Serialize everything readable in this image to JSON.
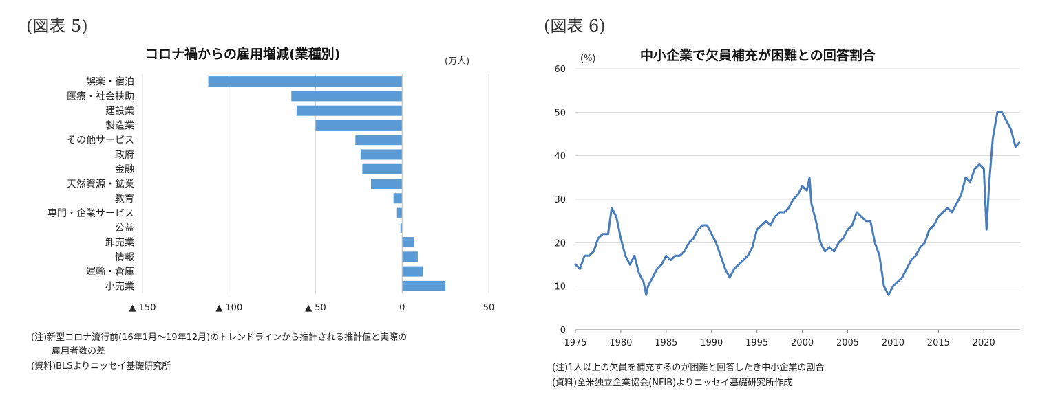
{
  "left": {
    "fig_label": "(図表 5)",
    "unit": "(万人)",
    "notes": [
      "(注)新型コロナ流行前(16年1月～19年12月)のトレンドラインから推計される推計値と実際の",
      "雇用者数の差",
      "(資料)BLSよりニッセイ基礎研究所"
    ]
  },
  "right": {
    "fig_label": "(図表 6)",
    "unit": "(%)",
    "notes": [
      "(注)1人以上の欠員を補充するのが困難と回答したき中小企業の割合",
      "(資料)全米独立企業協会(NFIB)よりニッセイ基礎研究所作成"
    ]
  },
  "chart_data": [
    {
      "type": "bar",
      "orientation": "horizontal",
      "title": "コロナ禍からの雇用増減(業種別)",
      "categories": [
        "娯楽・宿泊",
        "医療・社会扶助",
        "建設業",
        "製造業",
        "その他サービス",
        "政府",
        "金融",
        "天然資源・鉱業",
        "教育",
        "専門・企業サービス",
        "公益",
        "卸売業",
        "情報",
        "運輸・倉庫",
        "小売業"
      ],
      "values": [
        -112,
        -64,
        -61,
        -50,
        -27,
        -24,
        -23,
        -18,
        -5,
        -3,
        -1,
        7,
        9,
        12,
        25
      ],
      "xlim": [
        -150,
        50
      ],
      "xticks": [
        -150,
        -100,
        -50,
        0,
        50
      ],
      "xtick_labels": [
        "▲ 150",
        "▲ 100",
        "▲ 50",
        "0",
        "50"
      ],
      "grid": true,
      "color": "#5b9bd5"
    },
    {
      "type": "line",
      "title": "中小企業で欠員補充が困難との回答割合",
      "xlim": [
        1975,
        2024
      ],
      "ylim": [
        0,
        60
      ],
      "xticks": [
        1975,
        1980,
        1985,
        1990,
        1995,
        2000,
        2005,
        2010,
        2015,
        2020
      ],
      "yticks": [
        0,
        10,
        20,
        30,
        40,
        50,
        60
      ],
      "grid": true,
      "color": "#4a7ebb",
      "series": [
        {
          "x": [
            1975.0,
            1975.5,
            1976.0,
            1976.5,
            1977.0,
            1977.5,
            1978.0,
            1978.6,
            1979.0,
            1979.5,
            1980.0,
            1980.5,
            1981.0,
            1981.5,
            1982.0,
            1982.5,
            1982.8,
            1983.0,
            1983.5,
            1984.0,
            1984.5,
            1985.0,
            1985.5,
            1986.0,
            1986.5,
            1987.0,
            1987.5,
            1988.0,
            1988.5,
            1989.0,
            1989.5,
            1990.0,
            1990.5,
            1991.0,
            1991.5,
            1992.0,
            1992.5,
            1993.0,
            1993.5,
            1994.0,
            1994.5,
            1995.0,
            1995.5,
            1996.0,
            1996.5,
            1997.0,
            1997.5,
            1998.0,
            1998.5,
            1999.0,
            1999.5,
            2000.0,
            2000.5,
            2000.8,
            2001.0,
            2001.5,
            2002.0,
            2002.5,
            2003.0,
            2003.5,
            2004.0,
            2004.5,
            2005.0,
            2005.5,
            2006.0,
            2006.5,
            2007.0,
            2007.5,
            2008.0,
            2008.5,
            2009.0,
            2009.5,
            2010.0,
            2010.5,
            2011.0,
            2011.5,
            2012.0,
            2012.5,
            2013.0,
            2013.5,
            2014.0,
            2014.5,
            2015.0,
            2015.5,
            2016.0,
            2016.5,
            2017.0,
            2017.5,
            2018.0,
            2018.5,
            2019.0,
            2019.5,
            2020.0,
            2020.3,
            2020.6,
            2021.0,
            2021.5,
            2022.0,
            2022.5,
            2023.0,
            2023.5,
            2023.9
          ],
          "y": [
            15,
            14,
            17,
            17,
            18,
            21,
            22,
            22,
            28,
            26,
            21,
            17,
            15,
            17,
            13,
            11,
            8,
            10,
            12,
            14,
            15,
            17,
            16,
            17,
            17,
            18,
            20,
            21,
            23,
            24,
            24,
            22,
            20,
            17,
            14,
            12,
            14,
            15,
            16,
            17,
            19,
            23,
            24,
            25,
            24,
            26,
            27,
            27,
            28,
            30,
            31,
            33,
            32,
            35,
            29,
            25,
            20,
            18,
            19,
            18,
            20,
            21,
            23,
            24,
            27,
            26,
            25,
            25,
            20,
            17,
            10,
            8,
            10,
            11,
            12,
            14,
            16,
            17,
            19,
            20,
            23,
            24,
            26,
            27,
            28,
            27,
            29,
            31,
            35,
            34,
            37,
            38,
            37,
            23,
            34,
            44,
            50,
            50,
            48,
            46,
            42,
            43
          ]
        }
      ]
    }
  ]
}
